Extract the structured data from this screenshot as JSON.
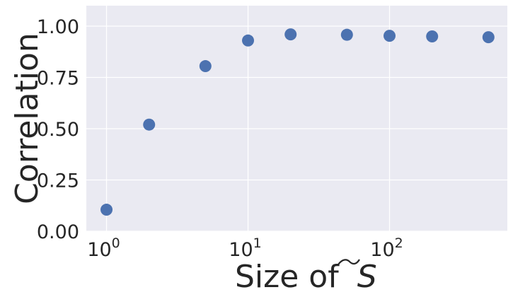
{
  "chart_data": {
    "type": "scatter",
    "title": "",
    "xlabel": "Size of",
    "xlabel_symbol": "S",
    "ylabel": "Correlation",
    "x_scale": "log",
    "xlim": [
      0.72,
      680
    ],
    "ylim": [
      0,
      1.1
    ],
    "grid": true,
    "x_ticks": [
      {
        "value": 1,
        "base": "10",
        "exp": "0"
      },
      {
        "value": 10,
        "base": "10",
        "exp": "1"
      },
      {
        "value": 100,
        "base": "10",
        "exp": "2"
      }
    ],
    "y_ticks": [
      {
        "value": 0,
        "label": "0.00"
      },
      {
        "value": 0.25,
        "label": "0.25"
      },
      {
        "value": 0.5,
        "label": "0.50"
      },
      {
        "value": 0.75,
        "label": "0.75"
      },
      {
        "value": 1.0,
        "label": "1.00"
      }
    ],
    "series": [
      {
        "x": [
          1,
          2,
          5,
          10,
          20,
          50,
          100,
          200,
          500
        ],
        "y": [
          0.105,
          0.52,
          0.805,
          0.93,
          0.96,
          0.958,
          0.953,
          0.95,
          0.946
        ]
      }
    ],
    "colors": {
      "background": "#EAEAF2",
      "grid": "#FFFFFF",
      "marker": "#4C72B0",
      "text": "#262626"
    }
  }
}
